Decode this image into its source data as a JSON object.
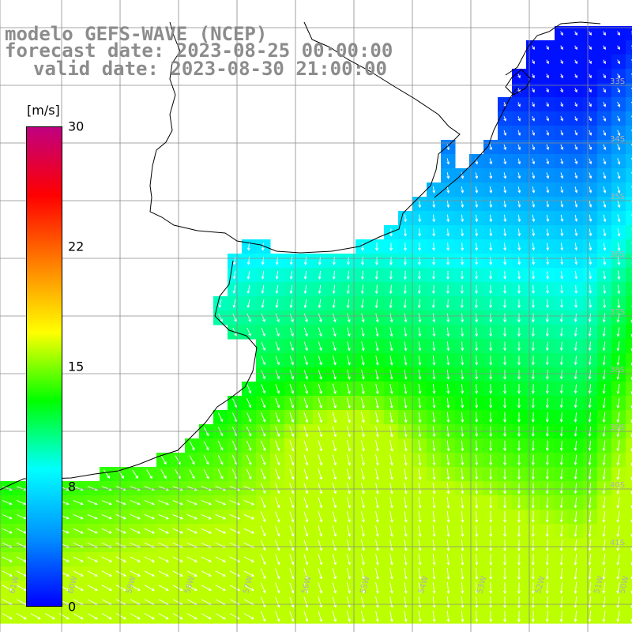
{
  "header": {
    "line1": "modelo GEFS-WAVE (NCEP)",
    "line2": "forecast date: 2023-08-25 00:00:00",
    "line3": "valid date: 2023-08-30 21:00:00"
  },
  "colorbar": {
    "unit": "[m/s]",
    "ticks": [
      "30",
      "22",
      "15",
      "8",
      "0"
    ],
    "range": [
      0,
      30
    ],
    "colors": [
      "#0000ff",
      "#0090ff",
      "#00ffff",
      "#00ff00",
      "#ffff00",
      "#ff8000",
      "#ff0000",
      "#c00080"
    ]
  },
  "map": {
    "lat_labels": [
      "33S",
      "34S",
      "35S",
      "36S",
      "37S",
      "38S",
      "39S",
      "40S",
      "41S"
    ],
    "lon_labels": [
      "61W",
      "60W",
      "59W",
      "58W",
      "57W",
      "56W",
      "55W",
      "54W",
      "53W",
      "52W",
      "51W",
      "50W"
    ],
    "variable": "wind speed and direction"
  }
}
